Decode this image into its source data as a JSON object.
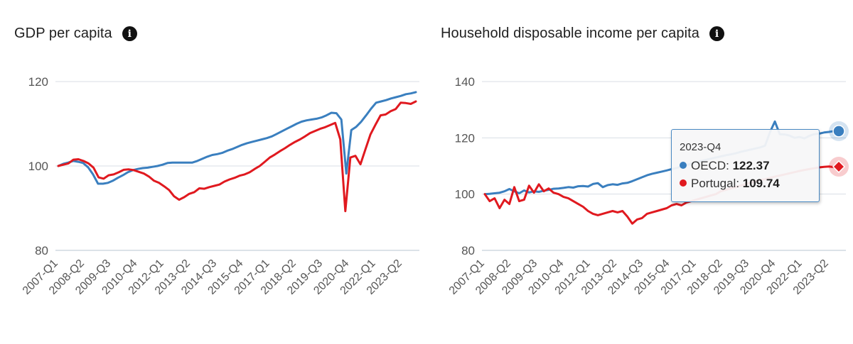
{
  "colors": {
    "oecd": "#3a7fbf",
    "portugal": "#e0191f",
    "grid": "#d8dee5"
  },
  "x_tick_labels": [
    "2007-Q1",
    "2008-Q2",
    "2009-Q3",
    "2010-Q4",
    "2012-Q1",
    "2013-Q2",
    "2014-Q3",
    "2015-Q4",
    "2017-Q1",
    "2018-Q2",
    "2019-Q3",
    "2020-Q4",
    "2022-Q1",
    "2023-Q2"
  ],
  "panels": {
    "gdp": {
      "title": "GDP per capita",
      "info_icon": "i"
    },
    "income": {
      "title": "Household disposable income per capita",
      "info_icon": "i"
    }
  },
  "tooltip": {
    "period": "2023-Q4",
    "rows": [
      {
        "label": "OECD: ",
        "value": "122.37",
        "color": "#3a7fbf"
      },
      {
        "label": "Portugal: ",
        "value": "109.74",
        "color": "#e0191f"
      }
    ]
  },
  "chart_data": [
    {
      "type": "line",
      "title": "GDP per capita",
      "xlabel": "",
      "ylabel": "",
      "ylim": [
        80,
        120
      ],
      "y_ticks": [
        80,
        100,
        120
      ],
      "grid": "horizontal",
      "x_tick_labels": [
        "2007-Q1",
        "2008-Q2",
        "2009-Q3",
        "2010-Q4",
        "2012-Q1",
        "2013-Q2",
        "2014-Q3",
        "2015-Q4",
        "2017-Q1",
        "2018-Q2",
        "2019-Q3",
        "2020-Q4",
        "2022-Q1",
        "2023-Q2"
      ],
      "series": [
        {
          "name": "OECD",
          "color": "#3a7fbf",
          "values": [
            100,
            100.5,
            100.8,
            101.2,
            101,
            100.7,
            99.7,
            98,
            95.8,
            95.8,
            96,
            96.5,
            97.2,
            97.8,
            98.5,
            99,
            99.3,
            99.5,
            99.6,
            99.8,
            100,
            100.3,
            100.7,
            100.8,
            100.8,
            100.8,
            100.8,
            100.8,
            101.2,
            101.7,
            102.2,
            102.6,
            102.8,
            103.1,
            103.6,
            104,
            104.5,
            105,
            105.4,
            105.7,
            106,
            106.3,
            106.6,
            107,
            107.6,
            108.2,
            108.8,
            109.4,
            110,
            110.5,
            110.8,
            111,
            111.2,
            111.5,
            112,
            112.6,
            112.5,
            111,
            98.2,
            108.5,
            109.3,
            110.5,
            112,
            113.6,
            115,
            115.3,
            115.6,
            116,
            116.3,
            116.6,
            117,
            117.2,
            117.5
          ]
        },
        {
          "name": "Portugal",
          "color": "#e0191f",
          "values": [
            100,
            100.3,
            100.6,
            101.5,
            101.6,
            101.2,
            100.6,
            99.6,
            97.3,
            97,
            97.8,
            98,
            98.5,
            99.1,
            99.2,
            99,
            98.6,
            98.2,
            97.5,
            96.5,
            96,
            95.2,
            94.3,
            92.8,
            92,
            92.6,
            93.4,
            93.8,
            94.7,
            94.6,
            95,
            95.3,
            95.6,
            96.3,
            96.8,
            97.2,
            97.7,
            98,
            98.5,
            99.3,
            100,
            101,
            102,
            102.7,
            103.5,
            104.2,
            105,
            105.7,
            106.3,
            107,
            107.8,
            108.3,
            108.8,
            109.2,
            109.7,
            110.2,
            106.3,
            89.3,
            102,
            102.4,
            100.4,
            104,
            107.5,
            109.8,
            112,
            112.2,
            113,
            113.5,
            115,
            114.9,
            114.7,
            115.3
          ]
        }
      ]
    },
    {
      "type": "line",
      "title": "Household disposable income per capita",
      "xlabel": "",
      "ylabel": "",
      "ylim": [
        80,
        140
      ],
      "y_ticks": [
        80,
        100,
        120,
        140
      ],
      "grid": "horizontal",
      "x_tick_labels": [
        "2007-Q1",
        "2008-Q2",
        "2009-Q3",
        "2010-Q4",
        "2012-Q1",
        "2013-Q2",
        "2014-Q3",
        "2015-Q4",
        "2017-Q1",
        "2018-Q2",
        "2019-Q3",
        "2020-Q4",
        "2022-Q1",
        "2023-Q2"
      ],
      "highlighted_point": "2023-Q4",
      "series": [
        {
          "name": "OECD",
          "color": "#3a7fbf",
          "values": [
            100,
            100.1,
            100.3,
            100.5,
            101,
            101.8,
            101,
            100.3,
            101.3,
            100.6,
            101,
            100.8,
            101.2,
            101.5,
            101.9,
            102,
            102.2,
            102.5,
            102.3,
            102.8,
            102.9,
            102.7,
            103.6,
            103.9,
            102.5,
            103.2,
            103.5,
            103.3,
            103.8,
            104,
            104.6,
            105.3,
            106,
            106.7,
            107.2,
            107.6,
            108,
            108.4,
            108.9,
            109.3,
            109.8,
            110.3,
            110.8,
            111.3,
            111.8,
            112.2,
            112.6,
            113,
            113.4,
            113.8,
            114.1,
            114.5,
            115,
            115.4,
            115.8,
            116.2,
            116.6,
            117.2,
            122,
            125.8,
            121.3,
            121.2,
            120.8,
            120,
            120.3,
            119.8,
            120.7,
            121.3,
            121.5,
            121.9,
            122.1,
            122.4,
            122.37
          ]
        },
        {
          "name": "Portugal",
          "color": "#e0191f",
          "values": [
            100,
            97.5,
            98.5,
            95,
            98,
            96.5,
            102.5,
            97.5,
            98,
            103,
            100.5,
            103.5,
            101,
            102,
            100.5,
            100,
            99,
            98.5,
            97.5,
            96.5,
            95.5,
            94,
            93,
            92.5,
            93,
            93.5,
            94,
            93.5,
            94,
            92,
            89.5,
            91,
            91.5,
            93,
            93.5,
            94,
            94.5,
            95,
            96,
            96.5,
            96,
            97,
            97.5,
            98,
            98.5,
            99,
            99.5,
            100,
            101,
            101.5,
            102,
            102.5,
            103,
            103.5,
            104,
            104.5,
            105,
            105.3,
            105.8,
            106.2,
            106.6,
            107,
            107.4,
            107.8,
            108.2,
            108.6,
            108.9,
            109.2,
            109.5,
            109.7,
            109.8,
            109.6,
            109.74
          ]
        }
      ]
    }
  ]
}
